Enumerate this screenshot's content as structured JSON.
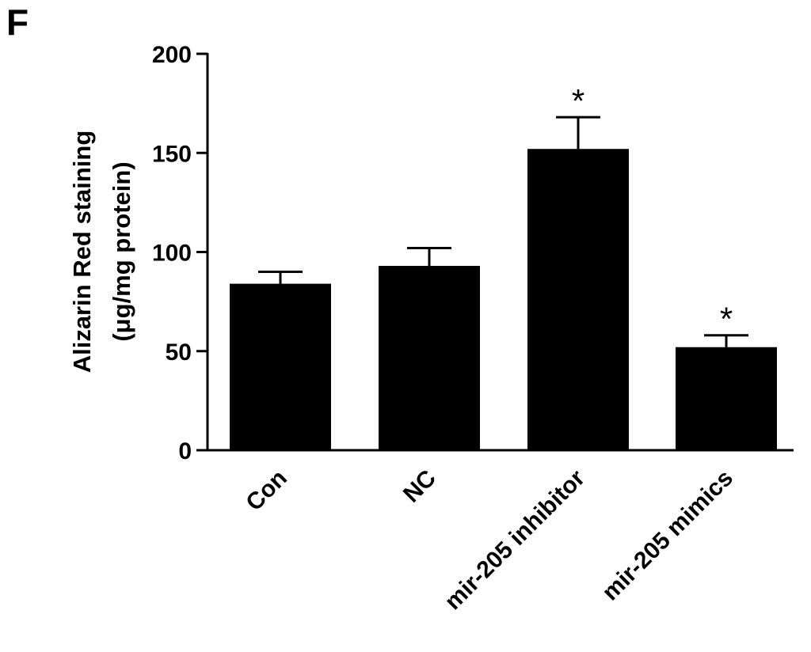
{
  "panel_label": "F",
  "chart_data": {
    "type": "bar",
    "categories": [
      "Con",
      "NC",
      "mir-205 inhibitor",
      "mir-205 mimics"
    ],
    "values": [
      84,
      93,
      152,
      52
    ],
    "error": [
      6,
      9,
      16,
      6
    ],
    "significance": [
      "",
      "",
      "*",
      "*"
    ],
    "title": "",
    "xlabel": "",
    "ylabel": [
      "Alizarin Red staining",
      "(μg/mg protein)"
    ],
    "ylim": [
      0,
      200
    ],
    "yticks": [
      0,
      50,
      100,
      150,
      200
    ],
    "grid": false,
    "bar_color": "#000000"
  }
}
